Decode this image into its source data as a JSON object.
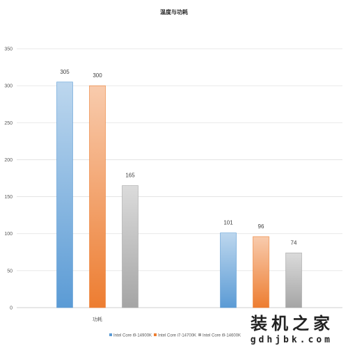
{
  "chart_data": {
    "type": "bar",
    "title": "温度与功耗",
    "categories": [
      "功耗",
      ""
    ],
    "series": [
      {
        "name": "Intel Core i9-14900K",
        "values": [
          305,
          101
        ],
        "color": "#5b9bd5"
      },
      {
        "name": "Intel Core i7-14700K",
        "values": [
          300,
          96
        ],
        "color": "#ed7d31"
      },
      {
        "name": "Intel Core i9-14600K",
        "values": [
          165,
          74
        ],
        "color": "#a5a5a5"
      }
    ],
    "ylim": [
      0,
      350
    ],
    "yticks": [
      0,
      50,
      100,
      150,
      200,
      250,
      300,
      350
    ],
    "grid": true,
    "legend_position": "bottom"
  },
  "watermark": {
    "brand": "装机之家",
    "url": "gdhjbk.com"
  }
}
